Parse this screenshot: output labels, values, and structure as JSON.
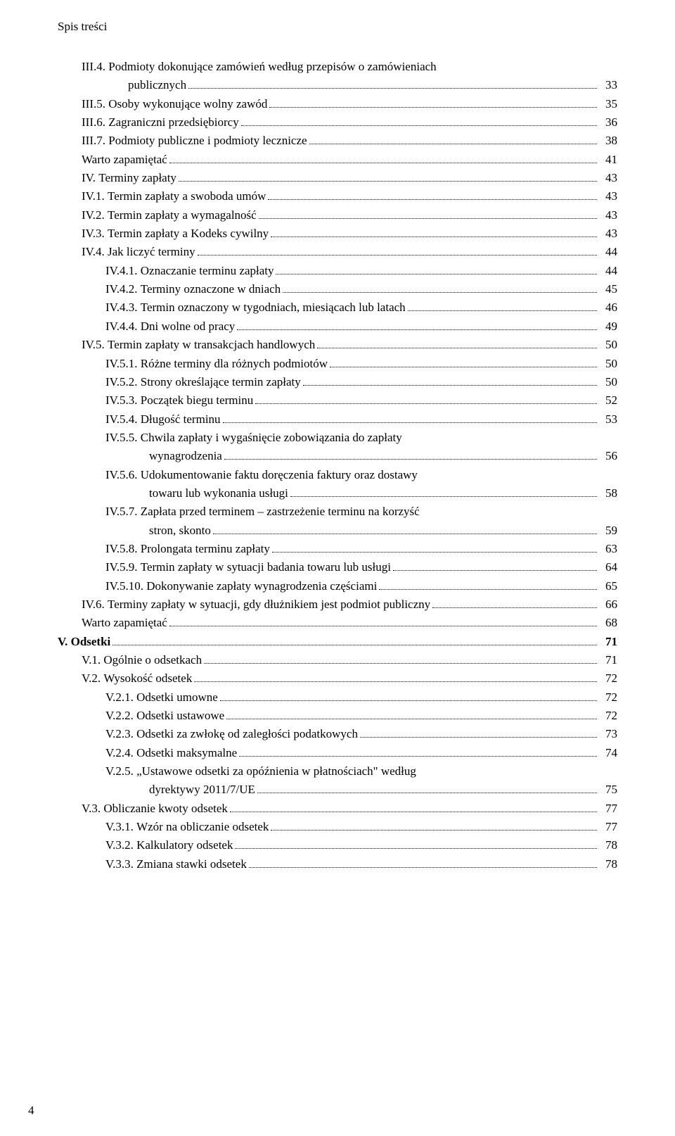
{
  "header": "Spis treści",
  "footer_page": "4",
  "entries": [
    {
      "indent": 1,
      "label": "III.4. ",
      "text": "Podmioty dokonujące zamówień według przepisów o zamówieniach",
      "page": null
    },
    {
      "indent": 1,
      "cont": true,
      "contIndent": "ind1c",
      "text": "publicznych",
      "page": "33"
    },
    {
      "indent": 1,
      "label": "III.5. ",
      "text": "Osoby wykonujące wolny zawód",
      "page": "35"
    },
    {
      "indent": 1,
      "label": "III.6. ",
      "text": "Zagraniczni przedsiębiorcy",
      "page": "36"
    },
    {
      "indent": 1,
      "label": "III.7. ",
      "text": "Podmioty publiczne i podmioty lecznicze",
      "page": "38"
    },
    {
      "indent": 1,
      "label": "",
      "text": "Warto zapamiętać",
      "page": "41"
    },
    {
      "indent": 1,
      "label": "IV. ",
      "text": "Terminy zapłaty",
      "page": "43"
    },
    {
      "indent": 1,
      "label": "IV.1. ",
      "text": "Termin zapłaty a swoboda umów",
      "page": "43"
    },
    {
      "indent": 1,
      "label": "IV.2. ",
      "text": "Termin zapłaty a wymagalność",
      "page": "43"
    },
    {
      "indent": 1,
      "label": "IV.3. ",
      "text": "Termin zapłaty a Kodeks cywilny",
      "page": "43"
    },
    {
      "indent": 1,
      "label": "IV.4. ",
      "text": "Jak liczyć terminy",
      "page": "44"
    },
    {
      "indent": 2,
      "label": "IV.4.1. ",
      "text": "Oznaczanie terminu zapłaty",
      "page": "44"
    },
    {
      "indent": 2,
      "label": "IV.4.2. ",
      "text": "Terminy oznaczone w dniach",
      "page": "45"
    },
    {
      "indent": 2,
      "label": "IV.4.3. ",
      "text": "Termin oznaczony w tygodniach, miesiącach lub latach",
      "page": "46"
    },
    {
      "indent": 2,
      "label": "IV.4.4. ",
      "text": "Dni wolne od pracy",
      "page": "49"
    },
    {
      "indent": 1,
      "label": "IV.5. ",
      "text": "Termin zapłaty w transakcjach handlowych",
      "page": "50"
    },
    {
      "indent": 2,
      "label": "IV.5.1. ",
      "text": "Różne terminy dla różnych podmiotów",
      "page": "50"
    },
    {
      "indent": 2,
      "label": "IV.5.2. ",
      "text": "Strony określające termin zapłaty",
      "page": "50"
    },
    {
      "indent": 2,
      "label": "IV.5.3. ",
      "text": "Początek biegu terminu",
      "page": "52"
    },
    {
      "indent": 2,
      "label": "IV.5.4. ",
      "text": "Długość terminu",
      "page": "53"
    },
    {
      "indent": 2,
      "label": "IV.5.5. ",
      "text": "Chwila zapłaty i wygaśnięcie zobowiązania do zapłaty",
      "page": null
    },
    {
      "indent": 2,
      "cont": true,
      "contIndent": "ind2c",
      "text": "wynagrodzenia",
      "page": "56"
    },
    {
      "indent": 2,
      "label": "IV.5.6. ",
      "text": "Udokumentowanie faktu doręczenia faktury oraz dostawy",
      "page": null
    },
    {
      "indent": 2,
      "cont": true,
      "contIndent": "ind2c",
      "text": "towaru lub wykonania usługi",
      "page": "58"
    },
    {
      "indent": 2,
      "label": "IV.5.7. ",
      "text": "Zapłata przed terminem – zastrzeżenie terminu na korzyść",
      "page": null
    },
    {
      "indent": 2,
      "cont": true,
      "contIndent": "ind2c",
      "text": "stron, skonto",
      "page": "59"
    },
    {
      "indent": 2,
      "label": "IV.5.8. ",
      "text": "Prolongata terminu zapłaty",
      "page": "63"
    },
    {
      "indent": 2,
      "label": "IV.5.9. ",
      "text": "Termin zapłaty w sytuacji badania towaru lub usługi",
      "page": "64"
    },
    {
      "indent": 2,
      "label": "IV.5.10. ",
      "text": "Dokonywanie zapłaty wynagrodzenia częściami",
      "page": "65"
    },
    {
      "indent": 1,
      "label": "IV.6. ",
      "text": "Terminy zapłaty w sytuacji, gdy dłużnikiem jest podmiot publiczny",
      "page": "66"
    },
    {
      "indent": 1,
      "label": "",
      "text": "Warto zapamiętać",
      "page": "68"
    },
    {
      "indent": 0,
      "label": "V. ",
      "text": "Odsetki",
      "page": "71",
      "bold": true
    },
    {
      "indent": 1,
      "label": "V.1. ",
      "text": "Ogólnie o odsetkach",
      "page": "71"
    },
    {
      "indent": 1,
      "label": "V.2. ",
      "text": "Wysokość odsetek",
      "page": "72"
    },
    {
      "indent": 2,
      "label": "V.2.1. ",
      "text": "Odsetki umowne",
      "page": "72"
    },
    {
      "indent": 2,
      "label": "V.2.2. ",
      "text": "Odsetki ustawowe",
      "page": "72"
    },
    {
      "indent": 2,
      "label": "V.2.3. ",
      "text": "Odsetki za zwłokę od zaległości podatkowych",
      "page": "73"
    },
    {
      "indent": 2,
      "label": "V.2.4. ",
      "text": "Odsetki maksymalne",
      "page": "74"
    },
    {
      "indent": 2,
      "label": "V.2.5. ",
      "text": "„Ustawowe odsetki za opóźnienia w płatnościach\" według",
      "page": null
    },
    {
      "indent": 2,
      "cont": true,
      "contIndent": "ind2c",
      "text": "dyrektywy 2011/7/UE",
      "page": "75"
    },
    {
      "indent": 1,
      "label": "V.3. ",
      "text": "Obliczanie kwoty odsetek",
      "page": "77"
    },
    {
      "indent": 2,
      "label": "V.3.1. ",
      "text": "Wzór na obliczanie odsetek",
      "page": "77"
    },
    {
      "indent": 2,
      "label": "V.3.2. ",
      "text": "Kalkulatory odsetek",
      "page": "78"
    },
    {
      "indent": 2,
      "label": "V.3.3. ",
      "text": "Zmiana stawki odsetek",
      "page": "78"
    }
  ]
}
